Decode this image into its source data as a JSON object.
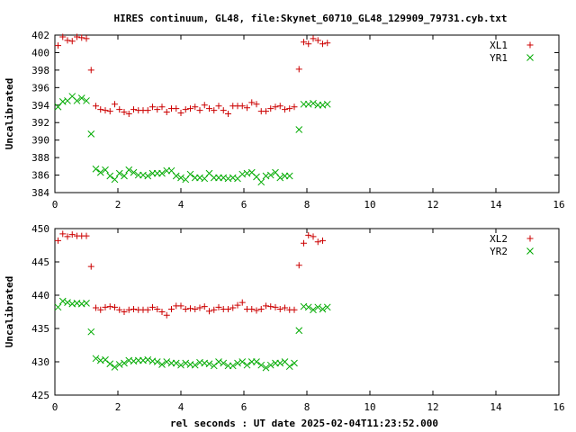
{
  "figure": {
    "title": "HIRES continuum, GL48, file:Skynet_60710_GL48_129909_79731.cyb.txt",
    "xlabel": "rel seconds : UT date 2025-02-04T11:23:52.000"
  },
  "chart_data": [
    {
      "type": "scatter",
      "ylabel": "Uncalibrated",
      "xlim": [
        0,
        16
      ],
      "ylim": [
        384,
        402
      ],
      "xticks": [
        "0",
        "2",
        "4",
        "6",
        "8",
        "10",
        "12",
        "14",
        "16"
      ],
      "yticks": [
        "384",
        "386",
        "388",
        "390",
        "392",
        "394",
        "396",
        "398",
        "400",
        "402"
      ],
      "legend_position": "top-right",
      "series": [
        {
          "name": "XL1",
          "marker": "+",
          "color": "#cc0000",
          "points": [
            [
              0.1,
              400.8
            ],
            [
              0.25,
              401.8
            ],
            [
              0.4,
              401.4
            ],
            [
              0.55,
              401.3
            ],
            [
              0.7,
              401.8
            ],
            [
              0.85,
              401.7
            ],
            [
              1.0,
              401.6
            ],
            [
              1.15,
              398.0
            ],
            [
              1.3,
              393.9
            ],
            [
              1.45,
              393.5
            ],
            [
              1.6,
              393.4
            ],
            [
              1.75,
              393.3
            ],
            [
              1.9,
              394.1
            ],
            [
              2.05,
              393.5
            ],
            [
              2.2,
              393.2
            ],
            [
              2.35,
              393.0
            ],
            [
              2.5,
              393.5
            ],
            [
              2.65,
              393.4
            ],
            [
              2.8,
              393.4
            ],
            [
              2.95,
              393.4
            ],
            [
              3.1,
              393.8
            ],
            [
              3.25,
              393.5
            ],
            [
              3.4,
              393.8
            ],
            [
              3.55,
              393.2
            ],
            [
              3.7,
              393.6
            ],
            [
              3.85,
              393.6
            ],
            [
              4.0,
              393.1
            ],
            [
              4.15,
              393.5
            ],
            [
              4.3,
              393.6
            ],
            [
              4.45,
              393.8
            ],
            [
              4.6,
              393.4
            ],
            [
              4.75,
              394.0
            ],
            [
              4.9,
              393.6
            ],
            [
              5.05,
              393.4
            ],
            [
              5.2,
              393.9
            ],
            [
              5.35,
              393.4
            ],
            [
              5.5,
              393.0
            ],
            [
              5.65,
              393.9
            ],
            [
              5.8,
              393.9
            ],
            [
              5.95,
              393.9
            ],
            [
              6.1,
              393.7
            ],
            [
              6.25,
              394.3
            ],
            [
              6.4,
              394.1
            ],
            [
              6.55,
              393.3
            ],
            [
              6.7,
              393.3
            ],
            [
              6.85,
              393.6
            ],
            [
              7.0,
              393.8
            ],
            [
              7.15,
              393.9
            ],
            [
              7.3,
              393.5
            ],
            [
              7.45,
              393.6
            ],
            [
              7.6,
              393.8
            ],
            [
              7.75,
              398.1
            ],
            [
              7.9,
              401.2
            ],
            [
              8.05,
              401.0
            ],
            [
              8.2,
              401.6
            ],
            [
              8.35,
              401.4
            ],
            [
              8.5,
              401.0
            ],
            [
              8.65,
              401.1
            ]
          ]
        },
        {
          "name": "YR1",
          "marker": "x",
          "color": "#00aa00",
          "points": [
            [
              0.1,
              393.8
            ],
            [
              0.25,
              394.4
            ],
            [
              0.4,
              394.5
            ],
            [
              0.55,
              395.0
            ],
            [
              0.7,
              394.5
            ],
            [
              0.85,
              394.8
            ],
            [
              1.0,
              394.5
            ],
            [
              1.15,
              390.7
            ],
            [
              1.3,
              386.7
            ],
            [
              1.45,
              386.3
            ],
            [
              1.6,
              386.6
            ],
            [
              1.75,
              385.9
            ],
            [
              1.9,
              385.5
            ],
            [
              2.05,
              386.2
            ],
            [
              2.2,
              385.9
            ],
            [
              2.35,
              386.6
            ],
            [
              2.5,
              386.3
            ],
            [
              2.65,
              386.0
            ],
            [
              2.8,
              386.0
            ],
            [
              2.95,
              385.9
            ],
            [
              3.1,
              386.2
            ],
            [
              3.25,
              386.2
            ],
            [
              3.4,
              386.2
            ],
            [
              3.55,
              386.5
            ],
            [
              3.7,
              386.5
            ],
            [
              3.85,
              385.9
            ],
            [
              4.0,
              385.7
            ],
            [
              4.15,
              385.5
            ],
            [
              4.3,
              386.1
            ],
            [
              4.45,
              385.7
            ],
            [
              4.6,
              385.7
            ],
            [
              4.75,
              385.6
            ],
            [
              4.9,
              386.2
            ],
            [
              5.05,
              385.7
            ],
            [
              5.2,
              385.7
            ],
            [
              5.35,
              385.7
            ],
            [
              5.5,
              385.6
            ],
            [
              5.65,
              385.7
            ],
            [
              5.8,
              385.6
            ],
            [
              5.95,
              386.1
            ],
            [
              6.1,
              386.2
            ],
            [
              6.25,
              386.3
            ],
            [
              6.4,
              385.8
            ],
            [
              6.55,
              385.2
            ],
            [
              6.7,
              385.9
            ],
            [
              6.85,
              386.0
            ],
            [
              7.0,
              386.3
            ],
            [
              7.15,
              385.7
            ],
            [
              7.3,
              385.9
            ],
            [
              7.45,
              385.9
            ],
            [
              7.75,
              391.2
            ],
            [
              7.9,
              394.1
            ],
            [
              8.05,
              394.1
            ],
            [
              8.2,
              394.2
            ],
            [
              8.35,
              394.0
            ],
            [
              8.5,
              394.0
            ],
            [
              8.65,
              394.1
            ]
          ]
        }
      ]
    },
    {
      "type": "scatter",
      "ylabel": "Uncalibrated",
      "xlim": [
        0,
        16
      ],
      "ylim": [
        425,
        450
      ],
      "xticks": [
        "0",
        "2",
        "4",
        "6",
        "8",
        "10",
        "12",
        "14",
        "16"
      ],
      "yticks": [
        "425",
        "430",
        "435",
        "440",
        "445",
        "450"
      ],
      "legend_position": "top-right",
      "series": [
        {
          "name": "XL2",
          "marker": "+",
          "color": "#cc0000",
          "points": [
            [
              0.1,
              448.2
            ],
            [
              0.25,
              449.2
            ],
            [
              0.4,
              448.8
            ],
            [
              0.55,
              449.1
            ],
            [
              0.7,
              448.9
            ],
            [
              0.85,
              448.9
            ],
            [
              1.0,
              448.9
            ],
            [
              1.15,
              444.3
            ],
            [
              1.3,
              438.1
            ],
            [
              1.45,
              437.8
            ],
            [
              1.6,
              438.2
            ],
            [
              1.75,
              438.3
            ],
            [
              1.9,
              438.2
            ],
            [
              2.05,
              437.8
            ],
            [
              2.2,
              437.5
            ],
            [
              2.35,
              437.8
            ],
            [
              2.5,
              437.9
            ],
            [
              2.65,
              437.8
            ],
            [
              2.8,
              437.8
            ],
            [
              2.95,
              437.8
            ],
            [
              3.1,
              438.2
            ],
            [
              3.25,
              437.9
            ],
            [
              3.4,
              437.5
            ],
            [
              3.55,
              437.0
            ],
            [
              3.7,
              437.9
            ],
            [
              3.85,
              438.4
            ],
            [
              4.0,
              438.4
            ],
            [
              4.15,
              437.9
            ],
            [
              4.3,
              438.0
            ],
            [
              4.45,
              437.9
            ],
            [
              4.6,
              438.1
            ],
            [
              4.75,
              438.3
            ],
            [
              4.9,
              437.6
            ],
            [
              5.05,
              437.8
            ],
            [
              5.2,
              438.2
            ],
            [
              5.35,
              437.9
            ],
            [
              5.5,
              437.9
            ],
            [
              5.65,
              438.1
            ],
            [
              5.8,
              438.5
            ],
            [
              5.95,
              438.9
            ],
            [
              6.1,
              437.9
            ],
            [
              6.25,
              437.9
            ],
            [
              6.4,
              437.7
            ],
            [
              6.55,
              437.9
            ],
            [
              6.7,
              438.4
            ],
            [
              6.85,
              438.3
            ],
            [
              7.0,
              438.2
            ],
            [
              7.15,
              437.9
            ],
            [
              7.3,
              438.1
            ],
            [
              7.45,
              437.8
            ],
            [
              7.6,
              437.8
            ],
            [
              7.75,
              444.5
            ],
            [
              7.9,
              447.8
            ],
            [
              8.05,
              449.0
            ],
            [
              8.2,
              448.8
            ],
            [
              8.35,
              448.0
            ],
            [
              8.5,
              448.2
            ]
          ]
        },
        {
          "name": "YR2",
          "marker": "x",
          "color": "#00aa00",
          "points": [
            [
              0.1,
              438.2
            ],
            [
              0.25,
              439.1
            ],
            [
              0.4,
              438.9
            ],
            [
              0.55,
              438.7
            ],
            [
              0.7,
              438.8
            ],
            [
              0.85,
              438.7
            ],
            [
              1.0,
              438.8
            ],
            [
              1.15,
              434.5
            ],
            [
              1.3,
              430.5
            ],
            [
              1.45,
              430.2
            ],
            [
              1.6,
              430.3
            ],
            [
              1.75,
              429.7
            ],
            [
              1.9,
              429.2
            ],
            [
              2.05,
              429.6
            ],
            [
              2.2,
              429.8
            ],
            [
              2.35,
              430.2
            ],
            [
              2.5,
              430.1
            ],
            [
              2.65,
              430.2
            ],
            [
              2.8,
              430.2
            ],
            [
              2.95,
              430.3
            ],
            [
              3.1,
              430.1
            ],
            [
              3.25,
              430.0
            ],
            [
              3.4,
              429.6
            ],
            [
              3.55,
              430.0
            ],
            [
              3.7,
              429.8
            ],
            [
              3.85,
              429.8
            ],
            [
              4.0,
              429.5
            ],
            [
              4.15,
              429.8
            ],
            [
              4.3,
              429.6
            ],
            [
              4.45,
              429.5
            ],
            [
              4.6,
              429.9
            ],
            [
              4.75,
              429.8
            ],
            [
              4.9,
              429.7
            ],
            [
              5.05,
              429.4
            ],
            [
              5.2,
              430.0
            ],
            [
              5.35,
              429.8
            ],
            [
              5.5,
              429.4
            ],
            [
              5.65,
              429.4
            ],
            [
              5.8,
              429.8
            ],
            [
              5.95,
              430.0
            ],
            [
              6.1,
              429.5
            ],
            [
              6.25,
              430.0
            ],
            [
              6.4,
              430.0
            ],
            [
              6.55,
              429.5
            ],
            [
              6.7,
              429.1
            ],
            [
              6.85,
              429.5
            ],
            [
              7.0,
              429.8
            ],
            [
              7.15,
              429.8
            ],
            [
              7.3,
              430.0
            ],
            [
              7.45,
              429.3
            ],
            [
              7.6,
              429.8
            ],
            [
              7.75,
              434.7
            ],
            [
              7.9,
              438.3
            ],
            [
              8.05,
              438.2
            ],
            [
              8.2,
              437.8
            ],
            [
              8.35,
              438.2
            ],
            [
              8.5,
              437.9
            ],
            [
              8.65,
              438.2
            ]
          ]
        }
      ]
    }
  ]
}
